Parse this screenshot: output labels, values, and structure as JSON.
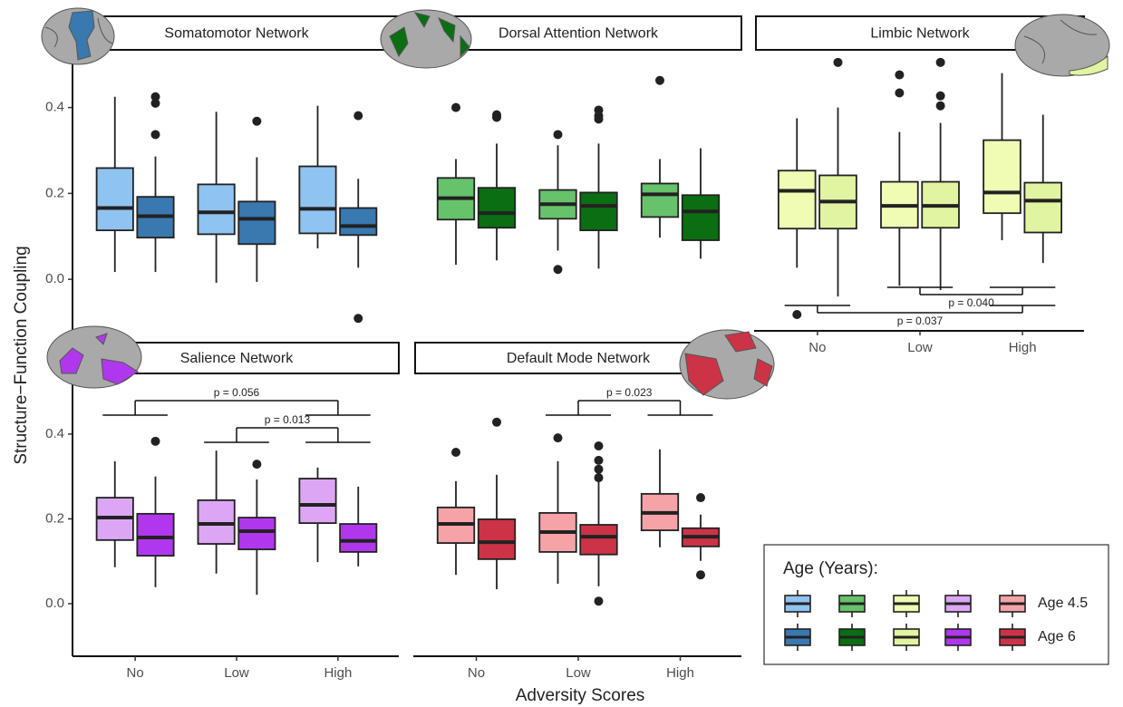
{
  "y_label": "Structure−Function Coupling",
  "x_label": "Adversity Scores",
  "legend_title": "Age (Years):",
  "chart_data": [
    {
      "type": "box",
      "title": "Somatomotor Network",
      "ylim": [
        -0.12,
        0.53
      ],
      "yticks": [
        {
          "value": 0,
          "label": "0.0"
        },
        {
          "value": 0.2,
          "label": "0.2"
        },
        {
          "value": 0.4,
          "label": "0.4"
        }
      ],
      "series": [
        {
          "name": "Age 4.5",
          "color": "#8fc3f0",
          "whisker_low": [
            0.017,
            -0.008,
            0.072
          ],
          "q1": [
            0.114,
            0.105,
            0.107
          ],
          "median": [
            0.166,
            0.156,
            0.164
          ],
          "q3": [
            0.259,
            0.221,
            0.263
          ],
          "whisker_high": [
            0.425,
            0.39,
            0.404
          ],
          "outliers": [
            [],
            [],
            []
          ]
        },
        {
          "name": "Age 6",
          "color": "#3a78b0",
          "whisker_low": [
            0.017,
            -0.006,
            0.027
          ],
          "q1": [
            0.097,
            0.082,
            0.103
          ],
          "median": [
            0.147,
            0.141,
            0.124
          ],
          "q3": [
            0.192,
            0.181,
            0.166
          ],
          "whisker_high": [
            0.286,
            0.284,
            0.234
          ],
          "outliers": [
            [
              0.425,
              0.41,
              0.337
            ],
            [
              0.368
            ],
            [
              0.381,
              -0.091
            ]
          ]
        }
      ]
    },
    {
      "type": "box",
      "title": "Dorsal Attention Network",
      "ylim": [
        -0.12,
        0.53
      ],
      "series": [
        {
          "color": "#66c26b",
          "whisker_low": [
            0.034,
            0.067,
            0.097
          ],
          "q1": [
            0.139,
            0.141,
            0.145
          ],
          "median": [
            0.189,
            0.175,
            0.198
          ],
          "q3": [
            0.236,
            0.208,
            0.223
          ],
          "whisker_high": [
            0.28,
            0.312,
            0.28
          ],
          "outliers": [
            [
              0.4
            ],
            [
              0.337,
              0.023
            ],
            [
              0.463
            ]
          ]
        },
        {
          "color": "#0b6e12",
          "whisker_low": [
            0.044,
            0.025,
            0.048
          ],
          "q1": [
            0.12,
            0.114,
            0.091
          ],
          "median": [
            0.154,
            0.171,
            0.158
          ],
          "q3": [
            0.213,
            0.202,
            0.196
          ],
          "whisker_high": [
            0.316,
            0.316,
            0.305
          ],
          "outliers": [
            [
              0.383,
              0.377
            ],
            [
              0.394,
              0.381,
              0.373
            ],
            []
          ]
        }
      ]
    },
    {
      "type": "box",
      "title": "Limbic Network",
      "ylim": [
        -0.12,
        0.53
      ],
      "categories": [
        "No",
        "Low",
        "High"
      ],
      "series": [
        {
          "color": "#f0fbb4",
          "whisker_low": [
            0.027,
            -0.015,
            0.091
          ],
          "q1": [
            0.118,
            0.12,
            0.154
          ],
          "median": [
            0.206,
            0.171,
            0.202
          ],
          "q3": [
            0.253,
            0.227,
            0.324
          ],
          "whisker_high": [
            0.375,
            0.343,
            0.48
          ],
          "outliers": [
            [
              -0.082
            ],
            [
              0.476,
              0.434
            ],
            []
          ]
        },
        {
          "color": "#e1f4a1",
          "whisker_low": [
            -0.04,
            -0.025,
            0.038
          ],
          "q1": [
            0.118,
            0.12,
            0.109
          ],
          "median": [
            0.181,
            0.171,
            0.183
          ],
          "q3": [
            0.242,
            0.227,
            0.225
          ],
          "whisker_high": [
            0.4,
            0.364,
            0.383
          ],
          "outliers": [
            [
              0.505
            ],
            [
              0.505,
              0.427,
              0.404
            ],
            []
          ]
        }
      ],
      "comparisons": [
        {
          "label": "p = 0.040",
          "groups": [
            "Low",
            "High"
          ],
          "side": "below"
        },
        {
          "label": "p = 0.037",
          "groups": [
            "No",
            "High"
          ],
          "side": "below"
        }
      ]
    },
    {
      "type": "box",
      "title": "Salience Network",
      "ylim": [
        -0.124,
        0.543
      ],
      "yticks": [
        {
          "value": 0,
          "label": "0.0"
        },
        {
          "value": 0.2,
          "label": "0.2"
        },
        {
          "value": 0.4,
          "label": "0.4"
        }
      ],
      "categories": [
        "No",
        "Low",
        "High"
      ],
      "series": [
        {
          "color": "#dca6f5",
          "whisker_low": [
            0.086,
            0.071,
            0.098
          ],
          "q1": [
            0.15,
            0.141,
            0.19
          ],
          "median": [
            0.203,
            0.188,
            0.233
          ],
          "q3": [
            0.25,
            0.244,
            0.295
          ],
          "whisker_high": [
            0.336,
            0.361,
            0.321
          ],
          "outliers": [
            [],
            [],
            []
          ]
        },
        {
          "color": "#b137ef",
          "whisker_low": [
            0.039,
            0.021,
            0.088
          ],
          "q1": [
            0.113,
            0.128,
            0.122
          ],
          "median": [
            0.156,
            0.171,
            0.148
          ],
          "q3": [
            0.212,
            0.203,
            0.188
          ],
          "whisker_high": [
            0.3,
            0.293,
            0.276
          ],
          "outliers": [
            [
              0.383
            ],
            [
              0.329
            ],
            []
          ]
        }
      ],
      "comparisons": [
        {
          "label": "p = 0.056",
          "groups": [
            "No",
            "High"
          ],
          "side": "above"
        },
        {
          "label": "p = 0.013",
          "groups": [
            "Low",
            "High"
          ],
          "side": "above"
        }
      ]
    },
    {
      "type": "box",
      "title": "Default Mode Network",
      "ylim": [
        -0.124,
        0.543
      ],
      "categories": [
        "No",
        "Low",
        "High"
      ],
      "series": [
        {
          "color": "#f6a3a8",
          "whisker_low": [
            0.068,
            0.047,
            0.133
          ],
          "q1": [
            0.143,
            0.122,
            0.173
          ],
          "median": [
            0.188,
            0.169,
            0.214
          ],
          "q3": [
            0.227,
            0.214,
            0.259
          ],
          "whisker_high": [
            0.289,
            0.336,
            0.364
          ],
          "outliers": [
            [
              0.357
            ],
            [
              0.391
            ],
            []
          ]
        },
        {
          "color": "#cc3347",
          "whisker_low": [
            0.034,
            0.041,
            0.101
          ],
          "q1": [
            0.105,
            0.116,
            0.135
          ],
          "median": [
            0.145,
            0.158,
            0.158
          ],
          "q3": [
            0.199,
            0.186,
            0.178
          ],
          "whisker_high": [
            0.304,
            0.295,
            0.21
          ],
          "outliers": [
            [
              0.428
            ],
            [
              0.372,
              0.338,
              0.317,
              0.297,
              0.006
            ],
            [
              0.25,
              0.068
            ]
          ]
        }
      ],
      "comparisons": [
        {
          "label": "p = 0.023",
          "groups": [
            "Low",
            "High"
          ],
          "side": "above"
        }
      ]
    }
  ]
}
